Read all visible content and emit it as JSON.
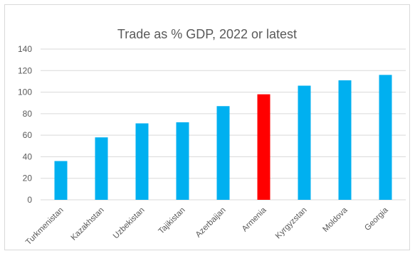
{
  "chart_data": {
    "type": "bar",
    "title": "Trade as % GDP, 2022 or latest",
    "xlabel": "",
    "ylabel": "",
    "categories": [
      "Turkmenistan",
      "Kazakhstan",
      "Uzbekistan",
      "Tajikistan",
      "Azerbaijan",
      "Armenia",
      "Kyrgyzstan",
      "Moldova",
      "Georgia"
    ],
    "values": [
      36,
      58,
      71,
      72,
      87,
      98,
      106,
      111,
      116
    ],
    "ylim": [
      0,
      140
    ],
    "yticks": [
      "0",
      "20",
      "40",
      "60",
      "80",
      "100",
      "120",
      "140"
    ],
    "grid": true,
    "legend": "none",
    "colors": {
      "default": "#00b0f0",
      "highlight": "#ff0000",
      "highlight_category": "Armenia",
      "gridline": "#d9d9d9",
      "text": "#595959"
    }
  }
}
